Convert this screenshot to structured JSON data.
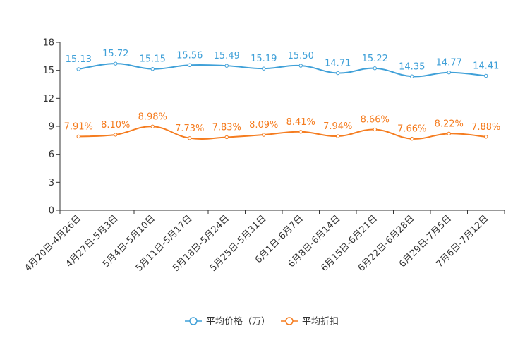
{
  "chart_data": {
    "type": "line",
    "title": "",
    "xlabel": "",
    "ylabel": "",
    "ylim": [
      0,
      18
    ],
    "yticks": [
      0,
      3,
      6,
      9,
      12,
      15,
      18
    ],
    "categories": [
      "4月20日-4月26日",
      "4月27日-5月3日",
      "5月4日-5月10日",
      "5月11日-5月17日",
      "5月18日-5月24日",
      "5月25日-5月31日",
      "6月1日-6月7日",
      "6月8日-6月14日",
      "6月15日-6月21日",
      "6月22日-6月28日",
      "6月29日-7月5日",
      "7月6日-7月12日"
    ],
    "series": [
      {
        "name": "平均价格（万）",
        "color": "#3fa0d8",
        "values": [
          15.13,
          15.72,
          15.15,
          15.56,
          15.49,
          15.19,
          15.5,
          14.71,
          15.22,
          14.35,
          14.77,
          14.41
        ],
        "labels": [
          "15.13",
          "15.72",
          "15.15",
          "15.56",
          "15.49",
          "15.19",
          "15.50",
          "14.71",
          "15.22",
          "14.35",
          "14.77",
          "14.41"
        ]
      },
      {
        "name": "平均折扣",
        "color": "#f57c1f",
        "values": [
          7.91,
          8.1,
          8.98,
          7.73,
          7.83,
          8.09,
          8.41,
          7.94,
          8.66,
          7.66,
          8.22,
          7.88
        ],
        "labels": [
          "7.91%",
          "8.10%",
          "8.98%",
          "7.73%",
          "7.83%",
          "8.09%",
          "8.41%",
          "7.94%",
          "8.66%",
          "7.66%",
          "8.22%",
          "7.88%"
        ]
      }
    ],
    "legend_position": "bottom-center"
  }
}
